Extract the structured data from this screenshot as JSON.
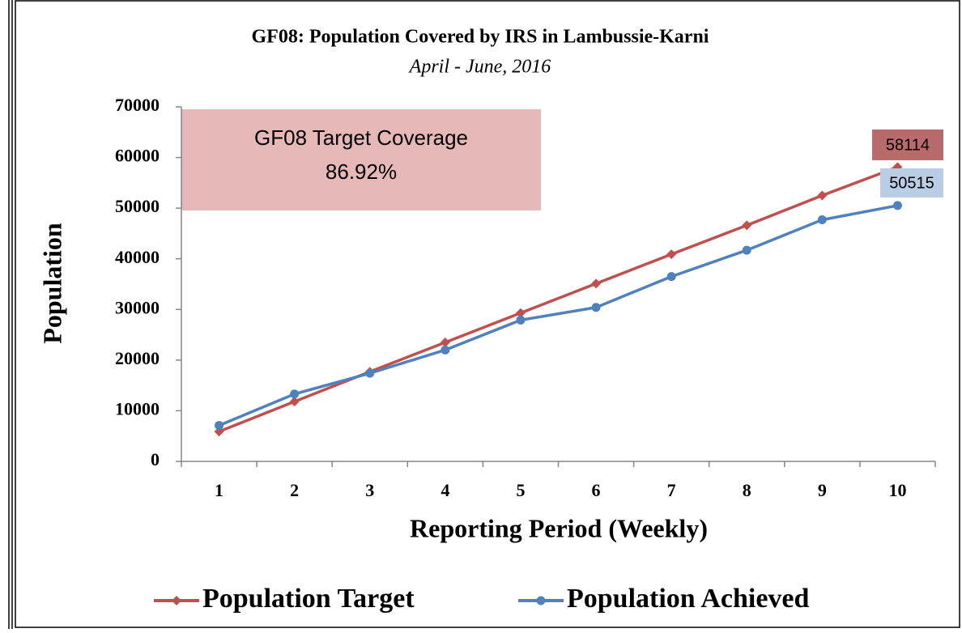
{
  "chart_data": {
    "type": "line",
    "title": "GF08: Population Covered by IRS in Lambussie-Karni",
    "subtitle": "April - June, 2016",
    "x_label": "Reporting Period (Weekly)",
    "y_label": "Population",
    "annotation": {
      "title": "GF08 Target Coverage",
      "value": "86.92%"
    },
    "categories": [
      "1",
      "2",
      "3",
      "4",
      "5",
      "6",
      "7",
      "8",
      "9",
      "10"
    ],
    "series": [
      {
        "name": "Population Target",
        "color": "#c0504d",
        "marker": "diamond",
        "values": [
          5900,
          11800,
          17700,
          23500,
          29300,
          35100,
          40900,
          46600,
          52500,
          58114
        ]
      },
      {
        "name": "Population Achieved",
        "color": "#4f81bd",
        "marker": "circle",
        "values": [
          7100,
          13300,
          17400,
          22000,
          27900,
          30400,
          36500,
          41700,
          47700,
          50515
        ]
      }
    ],
    "ylim": [
      0,
      70000
    ],
    "yticks": [
      0,
      10000,
      20000,
      30000,
      40000,
      50000,
      60000,
      70000
    ],
    "legend": "bottom"
  }
}
